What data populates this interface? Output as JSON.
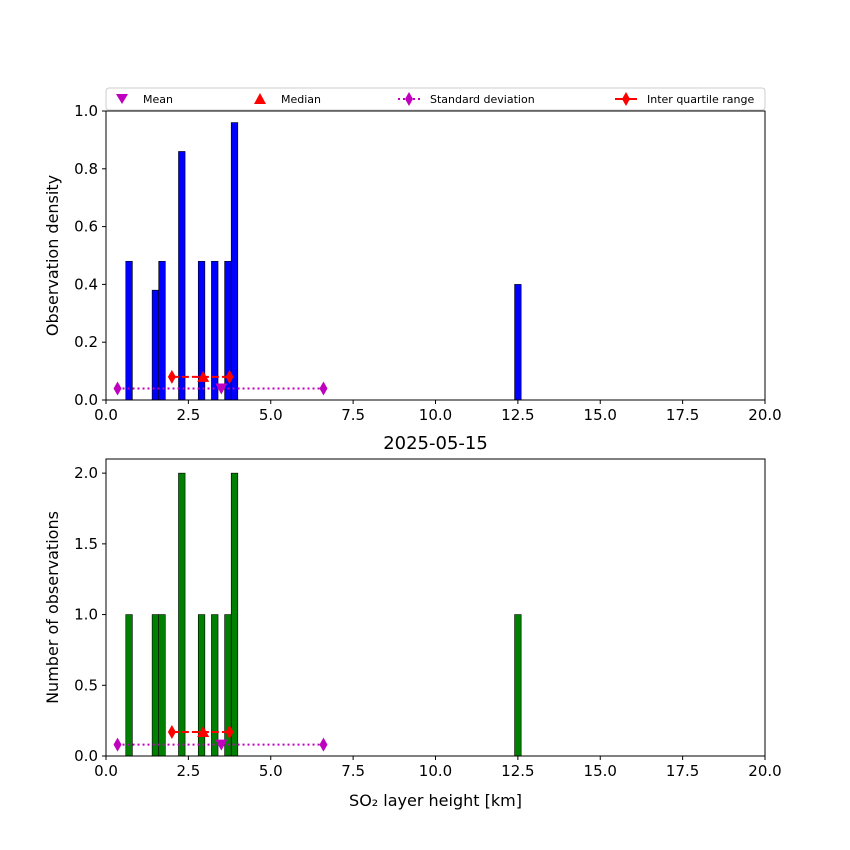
{
  "chart_data": [
    {
      "type": "bar",
      "panel": "top",
      "title": "",
      "xlabel": "",
      "ylabel": "Observation density",
      "xlim": [
        0,
        20
      ],
      "ylim": [
        0,
        1.0
      ],
      "xticks": [
        "0.0",
        "2.5",
        "5.0",
        "7.5",
        "10.0",
        "12.5",
        "15.0",
        "17.5",
        "20.0"
      ],
      "yticks": [
        "0.0",
        "0.2",
        "0.4",
        "0.6",
        "0.8",
        "1.0"
      ],
      "bar_color": "#0000ff",
      "bin_width": 0.2,
      "bars": [
        {
          "x": 0.7,
          "value": 0.48
        },
        {
          "x": 1.5,
          "value": 0.38
        },
        {
          "x": 1.7,
          "value": 0.48
        },
        {
          "x": 2.3,
          "value": 0.86
        },
        {
          "x": 2.9,
          "value": 0.48
        },
        {
          "x": 3.3,
          "value": 0.48
        },
        {
          "x": 3.7,
          "value": 0.48
        },
        {
          "x": 3.9,
          "value": 0.96
        },
        {
          "x": 12.5,
          "value": 0.4
        }
      ],
      "markers": {
        "mean": {
          "x": 3.5,
          "y": 0.04
        },
        "median": {
          "x": 2.95,
          "y": 0.08
        },
        "std_dev": {
          "x": [
            0.35,
            6.6
          ],
          "y": 0.04
        },
        "iqr": {
          "x": [
            2.0,
            3.75
          ],
          "y": 0.08
        }
      },
      "legend": {
        "placement": "top",
        "entries": [
          "Mean",
          "Median",
          "Standard deviation",
          "Inter quartile range"
        ]
      }
    },
    {
      "type": "bar",
      "panel": "bottom",
      "title": "2025-05-15",
      "xlabel": "SO₂ layer height [km]",
      "ylabel": "Number of observations",
      "xlim": [
        0,
        20
      ],
      "ylim": [
        0,
        2.1
      ],
      "xticks": [
        "0.0",
        "2.5",
        "5.0",
        "7.5",
        "10.0",
        "12.5",
        "15.0",
        "17.5",
        "20.0"
      ],
      "yticks": [
        "0.0",
        "0.5",
        "1.0",
        "1.5",
        "2.0"
      ],
      "bar_color": "#008000",
      "bin_width": 0.2,
      "bars": [
        {
          "x": 0.7,
          "value": 1
        },
        {
          "x": 1.5,
          "value": 1
        },
        {
          "x": 1.7,
          "value": 1
        },
        {
          "x": 2.3,
          "value": 2
        },
        {
          "x": 2.9,
          "value": 1
        },
        {
          "x": 3.3,
          "value": 1
        },
        {
          "x": 3.7,
          "value": 1
        },
        {
          "x": 3.9,
          "value": 2
        },
        {
          "x": 12.5,
          "value": 1
        }
      ],
      "markers": {
        "mean": {
          "x": 3.5,
          "y": 0.08
        },
        "median": {
          "x": 2.95,
          "y": 0.17
        },
        "std_dev": {
          "x": [
            0.35,
            6.6
          ],
          "y": 0.08
        },
        "iqr": {
          "x": [
            2.0,
            3.75
          ],
          "y": 0.17
        }
      }
    }
  ],
  "colors": {
    "mean": "#bf00bf",
    "median": "#ff0000",
    "std_dev": "#bf00bf",
    "iqr": "#ff0000"
  },
  "icons": {
    "mean": "triangle-down-marker-icon",
    "median": "triangle-up-marker-icon",
    "std_dev": "diamond-dotted-line-icon",
    "iqr": "diamond-solid-line-icon"
  }
}
